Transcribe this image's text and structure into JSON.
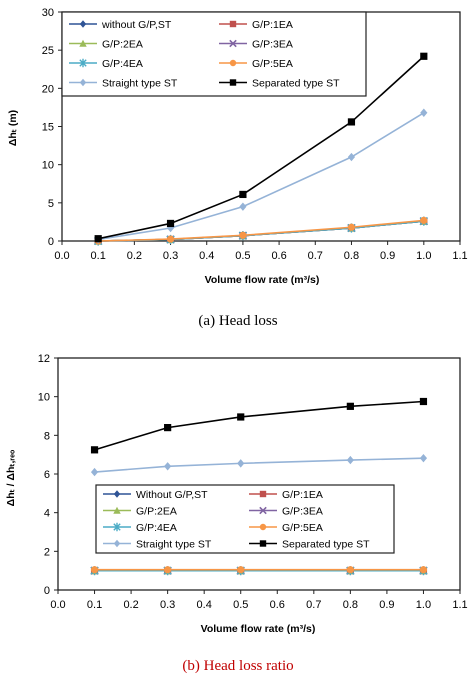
{
  "chart_data": [
    {
      "type": "line",
      "caption": "(a)  Head  loss",
      "xlabel": "Volume flow rate (m³/s)",
      "ylabel": "Δhₜ (m)",
      "xlim": [
        0.0,
        1.1
      ],
      "ylim": [
        0,
        30
      ],
      "xticks": [
        "0.0",
        "0.1",
        "0.2",
        "0.3",
        "0.4",
        "0.5",
        "0.6",
        "0.7",
        "0.8",
        "0.9",
        "1.0",
        "1.1"
      ],
      "yticks": [
        "0",
        "5",
        "10",
        "15",
        "20",
        "25",
        "30"
      ],
      "legend_position": "top-left",
      "x": [
        0.1,
        0.3,
        0.5,
        0.8,
        1.0
      ],
      "series": [
        {
          "name": "without G/P,ST",
          "color": "#2f5496",
          "marker": "diamond",
          "values": [
            0.0,
            0.2,
            0.7,
            1.7,
            2.6
          ]
        },
        {
          "name": "G/P:1EA",
          "color": "#c0504d",
          "marker": "square",
          "values": [
            0.0,
            0.2,
            0.7,
            1.7,
            2.6
          ]
        },
        {
          "name": "G/P:2EA",
          "color": "#9bbb59",
          "marker": "triangle",
          "values": [
            0.0,
            0.2,
            0.7,
            1.7,
            2.6
          ]
        },
        {
          "name": "G/P:3EA",
          "color": "#8064a2",
          "marker": "x",
          "values": [
            0.0,
            0.2,
            0.7,
            1.7,
            2.6
          ]
        },
        {
          "name": "G/P:4EA",
          "color": "#4bacc6",
          "marker": "star",
          "values": [
            0.0,
            0.2,
            0.7,
            1.7,
            2.6
          ]
        },
        {
          "name": "G/P:5EA",
          "color": "#f79646",
          "marker": "circle",
          "values": [
            0.0,
            0.25,
            0.75,
            1.8,
            2.7
          ]
        },
        {
          "name": "Straight type ST",
          "color": "#95b3d7",
          "marker": "diamond",
          "values": [
            0.2,
            1.7,
            4.5,
            11.0,
            16.8
          ]
        },
        {
          "name": "Separated type ST",
          "color": "#000000",
          "marker": "square",
          "values": [
            0.3,
            2.3,
            6.1,
            15.6,
            24.2
          ]
        }
      ]
    },
    {
      "type": "line",
      "caption": "(b)  Head  loss  ratio",
      "xlabel": "Volume flow rate (m³/s)",
      "ylabel": "Δhₜ / Δhₜ,ᵣₑₒ",
      "xlim": [
        0.0,
        1.1
      ],
      "ylim": [
        0,
        12
      ],
      "xticks": [
        "0.0",
        "0.1",
        "0.2",
        "0.3",
        "0.4",
        "0.5",
        "0.6",
        "0.7",
        "0.8",
        "0.9",
        "1.0",
        "1.1"
      ],
      "yticks": [
        "0",
        "2",
        "4",
        "6",
        "8",
        "10",
        "12"
      ],
      "legend_position": "bottom",
      "x": [
        0.1,
        0.3,
        0.5,
        0.8,
        1.0
      ],
      "series": [
        {
          "name": "Without G/P,ST",
          "color": "#2f5496",
          "marker": "diamond",
          "values": [
            1.0,
            1.0,
            1.0,
            1.0,
            1.0
          ]
        },
        {
          "name": "G/P:1EA",
          "color": "#c0504d",
          "marker": "square",
          "values": [
            1.0,
            1.0,
            1.0,
            1.0,
            1.0
          ]
        },
        {
          "name": "G/P:2EA",
          "color": "#9bbb59",
          "marker": "triangle",
          "values": [
            1.0,
            1.0,
            1.0,
            1.0,
            1.0
          ]
        },
        {
          "name": "G/P:3EA",
          "color": "#8064a2",
          "marker": "x",
          "values": [
            1.0,
            1.0,
            1.0,
            1.0,
            1.0
          ]
        },
        {
          "name": "G/P:4EA",
          "color": "#4bacc6",
          "marker": "star",
          "values": [
            1.0,
            1.0,
            1.0,
            1.0,
            1.0
          ]
        },
        {
          "name": "G/P:5EA",
          "color": "#f79646",
          "marker": "circle",
          "values": [
            1.05,
            1.05,
            1.05,
            1.05,
            1.05
          ]
        },
        {
          "name": "Straight type ST",
          "color": "#95b3d7",
          "marker": "diamond",
          "values": [
            6.1,
            6.4,
            6.55,
            6.72,
            6.82
          ]
        },
        {
          "name": "Separated type ST",
          "color": "#000000",
          "marker": "square",
          "values": [
            7.25,
            8.4,
            8.95,
            9.5,
            9.75
          ]
        }
      ]
    }
  ],
  "colors": {
    "caption_a": "#000000",
    "caption_b": "#c00000"
  }
}
